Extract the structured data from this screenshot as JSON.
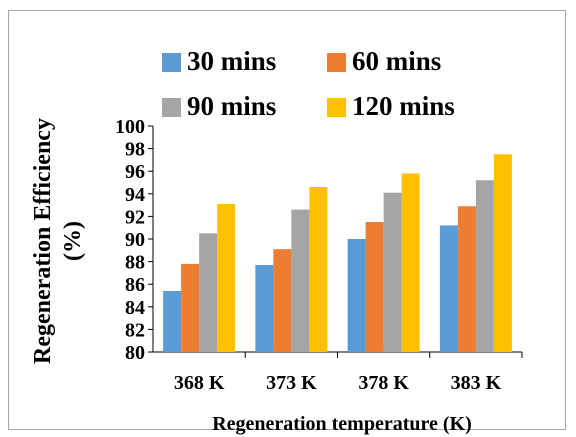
{
  "chart_data": {
    "type": "bar",
    "categories": [
      "368 K",
      "373 K",
      "378 K",
      "383 K"
    ],
    "series": [
      {
        "name": "30 mins",
        "color": "#5b9bd5",
        "values": [
          85.4,
          87.7,
          90.0,
          91.2
        ]
      },
      {
        "name": "60 mins",
        "color": "#ed7d31",
        "values": [
          87.8,
          89.1,
          91.5,
          92.9
        ]
      },
      {
        "name": "90 mins",
        "color": "#a5a5a5",
        "values": [
          90.5,
          92.6,
          94.1,
          95.2
        ]
      },
      {
        "name": "120 mins",
        "color": "#ffc000",
        "values": [
          93.1,
          94.6,
          95.8,
          97.5
        ]
      }
    ],
    "xlabel": "Regeneration temperature (K)",
    "ylabel_line1": "Regeneration Efficiency",
    "ylabel_line2": "(%)",
    "ylim": [
      80,
      100
    ],
    "yticks": [
      "80",
      "82",
      "84",
      "86",
      "88",
      "90",
      "92",
      "94",
      "96",
      "98",
      "100"
    ],
    "grid": false,
    "legend_position": "top"
  }
}
